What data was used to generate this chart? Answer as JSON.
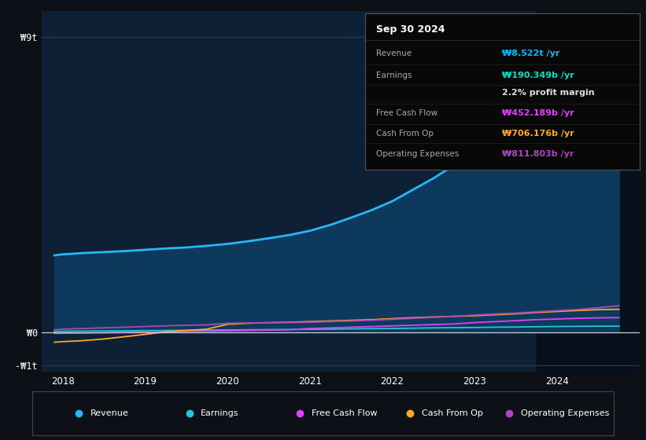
{
  "background_color": "#0d1117",
  "plot_bg_color": "#0d2035",
  "grid_color": "#2a4a6a",
  "tooltip_title": "Sep 30 2024",
  "tooltip_rows": [
    {
      "label": "Revenue",
      "value": "₩8.522t /yr",
      "color": "#00bfff"
    },
    {
      "label": "Earnings",
      "value": "₩190.349b /yr",
      "color": "#00e5c8"
    },
    {
      "label": "",
      "value": "2.2% profit margin",
      "color": "#dddddd"
    },
    {
      "label": "Free Cash Flow",
      "value": "₩452.189b /yr",
      "color": "#e040fb"
    },
    {
      "label": "Cash From Op",
      "value": "₩706.176b /yr",
      "color": "#ffa726"
    },
    {
      "label": "Operating Expenses",
      "value": "₩811.803b /yr",
      "color": "#ab47bc"
    }
  ],
  "years": [
    2017.9,
    2018.0,
    2018.25,
    2018.5,
    2018.75,
    2019.0,
    2019.25,
    2019.5,
    2019.75,
    2020.0,
    2020.25,
    2020.5,
    2020.75,
    2021.0,
    2021.25,
    2021.5,
    2021.75,
    2022.0,
    2022.25,
    2022.5,
    2022.75,
    2023.0,
    2023.25,
    2023.5,
    2023.75,
    2024.0,
    2024.25,
    2024.5,
    2024.75
  ],
  "revenue": [
    2350,
    2380,
    2420,
    2450,
    2480,
    2520,
    2560,
    2590,
    2640,
    2700,
    2780,
    2870,
    2970,
    3100,
    3280,
    3500,
    3730,
    4000,
    4350,
    4700,
    5100,
    5550,
    5980,
    6400,
    6850,
    7300,
    7700,
    8100,
    8522
  ],
  "earnings": [
    30,
    35,
    40,
    45,
    50,
    55,
    60,
    65,
    70,
    75,
    80,
    85,
    90,
    95,
    100,
    110,
    115,
    120,
    130,
    140,
    145,
    150,
    160,
    165,
    175,
    180,
    185,
    190,
    190
  ],
  "free_cf": [
    -30,
    -25,
    -20,
    -10,
    0,
    10,
    20,
    30,
    40,
    50,
    60,
    70,
    80,
    120,
    140,
    160,
    180,
    200,
    220,
    240,
    260,
    300,
    330,
    360,
    390,
    410,
    430,
    445,
    452
  ],
  "cash_from_op": [
    -300,
    -280,
    -250,
    -200,
    -130,
    -60,
    20,
    60,
    100,
    250,
    280,
    300,
    310,
    330,
    350,
    370,
    390,
    420,
    450,
    470,
    490,
    510,
    540,
    570,
    610,
    640,
    670,
    695,
    706
  ],
  "op_expenses": [
    80,
    100,
    120,
    140,
    160,
    180,
    200,
    220,
    230,
    280,
    290,
    295,
    300,
    310,
    330,
    350,
    370,
    400,
    430,
    460,
    490,
    530,
    560,
    590,
    630,
    665,
    700,
    755,
    812
  ],
  "revenue_color": "#29b6f6",
  "earnings_color": "#26c6da",
  "free_cf_color": "#e040fb",
  "cash_from_op_color": "#ffa726",
  "op_expenses_color": "#ab47bc",
  "fill_color": "#0d3a5c",
  "zero_line_color": "#cccccc",
  "ylim_min": -1200,
  "ylim_max": 9800,
  "ytick_labels": [
    "₩9t",
    "₩0",
    "-₩1t"
  ],
  "ytick_values": [
    9000,
    0,
    -1000
  ],
  "xlim_min": 2017.75,
  "xlim_max": 2025.0,
  "xtick_labels": [
    "2018",
    "2019",
    "2020",
    "2021",
    "2022",
    "2023",
    "2024"
  ],
  "xtick_values": [
    2018,
    2019,
    2020,
    2021,
    2022,
    2023,
    2024
  ],
  "legend_items": [
    {
      "label": "Revenue",
      "color": "#29b6f6"
    },
    {
      "label": "Earnings",
      "color": "#26c6da"
    },
    {
      "label": "Free Cash Flow",
      "color": "#e040fb"
    },
    {
      "label": "Cash From Op",
      "color": "#ffa726"
    },
    {
      "label": "Operating Expenses",
      "color": "#ab47bc"
    }
  ],
  "shade_start_x": 2023.75,
  "shade_end_x": 2025.0
}
